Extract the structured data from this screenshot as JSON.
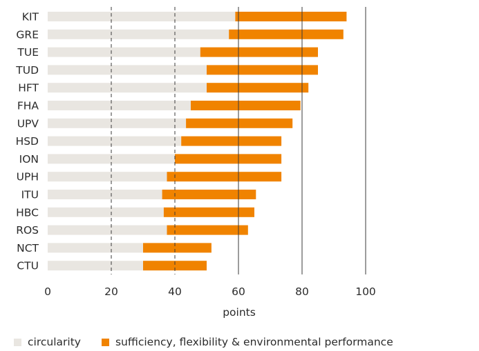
{
  "chart_data": {
    "type": "bar",
    "orientation": "horizontal",
    "stacked": true,
    "categories": [
      "KIT",
      "GRE",
      "TUE",
      "TUD",
      "HFT",
      "FHA",
      "UPV",
      "HSD",
      "ION",
      "UPH",
      "ITU",
      "HBC",
      "ROS",
      "NCT",
      "CTU"
    ],
    "series": [
      {
        "name": "circularity",
        "values": [
          59,
          57,
          48,
          50,
          50,
          45,
          43.5,
          42,
          40,
          37.5,
          36,
          36.5,
          37.5,
          30,
          30
        ]
      },
      {
        "name": "sufficiency, flexibility & environmental performance",
        "values": [
          35,
          36,
          37,
          35,
          32,
          34.5,
          33.5,
          31.5,
          33.5,
          36,
          29.5,
          28.5,
          25.5,
          21.5,
          20
        ]
      }
    ],
    "xlabel": "points",
    "ylabel": "",
    "xlim": [
      0,
      100
    ],
    "xticks": [
      "0",
      "20",
      "40",
      "60",
      "80",
      "100"
    ],
    "grid": "vertical, dashed at 20 and 40, solid at 60, 80 and 100",
    "legend_position": "bottom"
  },
  "colors": {
    "circularity": "#e9e6e1",
    "sufficiency": "#f08300",
    "grid": "#3a3a3a",
    "text": "#2b2b2b"
  }
}
